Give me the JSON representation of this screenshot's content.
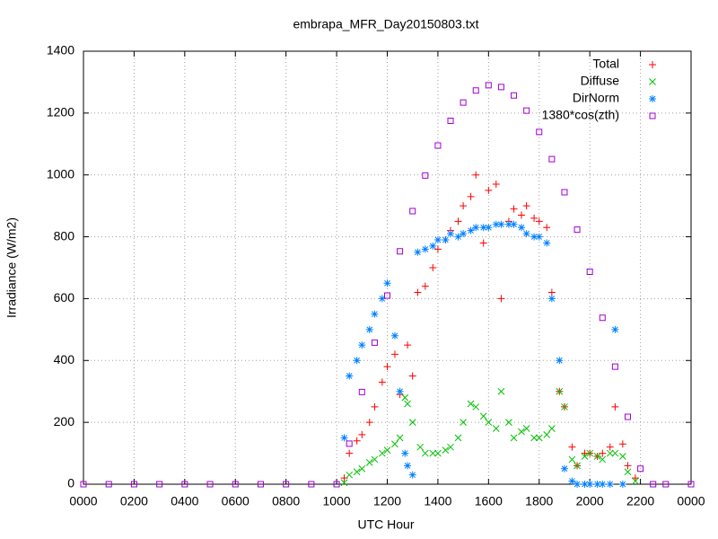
{
  "chart_data": {
    "type": "scatter",
    "title": "embrapa_MFR_Day20150803.txt",
    "xlabel": "UTC Hour",
    "ylabel": "Irradiance (W/m2)",
    "xlim": [
      0,
      24
    ],
    "ylim": [
      0,
      1400
    ],
    "xticks": [
      {
        "value": 0,
        "label": "0000"
      },
      {
        "value": 2,
        "label": "0200"
      },
      {
        "value": 4,
        "label": "0400"
      },
      {
        "value": 6,
        "label": "0600"
      },
      {
        "value": 8,
        "label": "0800"
      },
      {
        "value": 10,
        "label": "1000"
      },
      {
        "value": 12,
        "label": "1200"
      },
      {
        "value": 14,
        "label": "1400"
      },
      {
        "value": 16,
        "label": "1600"
      },
      {
        "value": 18,
        "label": "1800"
      },
      {
        "value": 20,
        "label": "2000"
      },
      {
        "value": 22,
        "label": "2200"
      },
      {
        "value": 24,
        "label": "0000"
      }
    ],
    "yticks": [
      0,
      200,
      400,
      600,
      800,
      1000,
      1200,
      1400
    ],
    "grid": true,
    "legend": "top-right",
    "series": [
      {
        "name": "Total",
        "color": "#ff0000",
        "marker": "plus",
        "x": [
          10.3,
          10.5,
          10.8,
          11,
          11.3,
          11.5,
          11.8,
          12,
          12.3,
          12.5,
          12.8,
          13,
          13.2,
          13.5,
          13.8,
          14,
          14.3,
          14.5,
          14.8,
          15,
          15.3,
          15.5,
          15.8,
          16,
          16.3,
          16.5,
          16.8,
          17,
          17.3,
          17.5,
          17.8,
          18,
          18.3,
          18.5,
          18.8,
          19,
          19.3,
          19.5,
          19.8,
          20,
          20.3,
          20.5,
          20.8,
          21,
          21.3,
          21.5,
          21.8
        ],
        "values": [
          20,
          100,
          140,
          160,
          200,
          250,
          330,
          380,
          420,
          290,
          450,
          350,
          620,
          640,
          700,
          760,
          790,
          820,
          850,
          900,
          930,
          1000,
          780,
          950,
          970,
          600,
          850,
          890,
          870,
          900,
          860,
          850,
          830,
          620,
          300,
          250,
          120,
          60,
          100,
          100,
          90,
          100,
          120,
          250,
          130,
          60,
          20
        ]
      },
      {
        "name": "Diffuse",
        "color": "#00c000",
        "marker": "cross",
        "x": [
          10.3,
          10.5,
          10.8,
          11,
          11.3,
          11.5,
          11.8,
          12,
          12.3,
          12.5,
          12.7,
          12.8,
          13,
          13.3,
          13.5,
          13.8,
          14,
          14.3,
          14.5,
          14.8,
          15,
          15.3,
          15.5,
          15.8,
          16,
          16.3,
          16.5,
          16.8,
          17,
          17.3,
          17.5,
          17.8,
          18,
          18.3,
          18.5,
          18.8,
          19,
          19.3,
          19.5,
          19.8,
          20,
          20.3,
          20.5,
          20.8,
          21,
          21.3,
          21.5,
          21.8
        ],
        "values": [
          5,
          30,
          40,
          50,
          70,
          80,
          100,
          110,
          130,
          150,
          280,
          260,
          200,
          120,
          100,
          100,
          100,
          110,
          120,
          150,
          200,
          260,
          250,
          220,
          200,
          180,
          300,
          200,
          150,
          170,
          180,
          150,
          150,
          160,
          180,
          300,
          250,
          80,
          60,
          90,
          100,
          90,
          80,
          100,
          100,
          90,
          40,
          10
        ]
      },
      {
        "name": "DirNorm",
        "color": "#0080ff",
        "marker": "star",
        "x": [
          10.3,
          10.5,
          10.8,
          11,
          11.3,
          11.5,
          11.8,
          12,
          12.3,
          12.5,
          12.7,
          12.8,
          13,
          13.2,
          13.5,
          13.8,
          14,
          14.3,
          14.5,
          14.8,
          15,
          15.3,
          15.5,
          15.8,
          16,
          16.3,
          16.5,
          16.8,
          17,
          17.3,
          17.5,
          17.8,
          18,
          18.3,
          18.5,
          18.8,
          19,
          19.3,
          19.5,
          19.8,
          20,
          20.3,
          20.5,
          20.8,
          21,
          21.3
        ],
        "values": [
          150,
          350,
          400,
          450,
          500,
          550,
          600,
          650,
          480,
          300,
          100,
          60,
          30,
          750,
          760,
          770,
          790,
          790,
          810,
          800,
          810,
          820,
          830,
          830,
          830,
          840,
          840,
          840,
          840,
          830,
          810,
          800,
          800,
          780,
          600,
          400,
          50,
          10,
          0,
          0,
          0,
          0,
          0,
          0,
          500,
          0
        ]
      },
      {
        "name": "1380*cos(zth)",
        "color": "#a000d0",
        "marker": "square",
        "x": [
          0,
          1,
          2,
          3,
          4,
          5,
          6,
          7,
          8,
          9,
          10,
          10.5,
          11,
          11.5,
          12,
          12.5,
          13,
          13.5,
          14,
          14.5,
          15,
          15.5,
          16,
          16.5,
          17,
          17.5,
          18,
          18.5,
          19,
          19.5,
          20,
          20.5,
          21,
          21.5,
          22,
          22.5,
          23,
          24
        ],
        "values": [
          0,
          0,
          0,
          0,
          0,
          0,
          0,
          0,
          0,
          0,
          0,
          131,
          298,
          458,
          610,
          753,
          883,
          998,
          1095,
          1175,
          1234,
          1273,
          1290,
          1284,
          1257,
          1208,
          1139,
          1051,
          944,
          823,
          687,
          538,
          380,
          218,
          50,
          0,
          0,
          0
        ]
      }
    ]
  }
}
